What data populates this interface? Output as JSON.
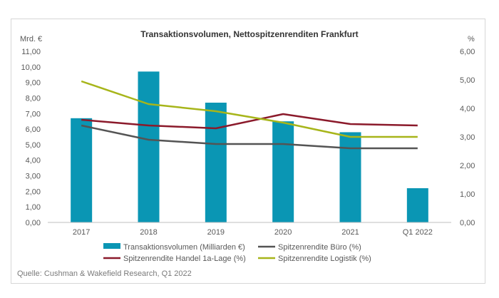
{
  "chart_data": {
    "type": "bar+line",
    "title": "Transaktionsvolumen, Nettospitzenrenditen Frankfurt",
    "ylabel_left": "Mrd. €",
    "ylabel_right": "%",
    "categories": [
      "2017",
      "2018",
      "2019",
      "2020",
      "2021",
      "Q1 2022"
    ],
    "left_axis": {
      "min": 0,
      "max": 11,
      "step": 1,
      "tick_labels": [
        "0,00",
        "1,00",
        "2,00",
        "3,00",
        "4,00",
        "5,00",
        "6,00",
        "7,00",
        "8,00",
        "9,00",
        "10,00",
        "11,00"
      ]
    },
    "right_axis": {
      "min": 0,
      "max": 6,
      "step": 1,
      "tick_labels": [
        "0,00",
        "1,00",
        "2,00",
        "3,00",
        "4,00",
        "5,00",
        "6,00"
      ]
    },
    "bars": {
      "name": "Transaktionsvolumen (Milliarden €)",
      "color": "#0a96b4",
      "values": [
        6.7,
        9.7,
        7.7,
        6.5,
        5.8,
        2.2
      ]
    },
    "series": [
      {
        "name": "Spitzenrendite Büro (%)",
        "color": "#545454",
        "values": [
          3.4,
          2.9,
          2.75,
          2.75,
          2.6,
          2.6
        ]
      },
      {
        "name": "Spitzenrendite Handel 1a-Lage (%)",
        "color": "#8b1a2b",
        "values": [
          3.6,
          3.4,
          3.3,
          3.8,
          3.45,
          3.4
        ]
      },
      {
        "name": "Spitzenrendite Logistik  (%)",
        "color": "#a7b51a",
        "values": [
          4.95,
          4.15,
          3.9,
          3.5,
          3.0,
          3.0
        ]
      }
    ],
    "legend_position": "bottom",
    "grid": false
  },
  "source": "Quelle: Cushman & Wakefield Research, Q1 2022"
}
